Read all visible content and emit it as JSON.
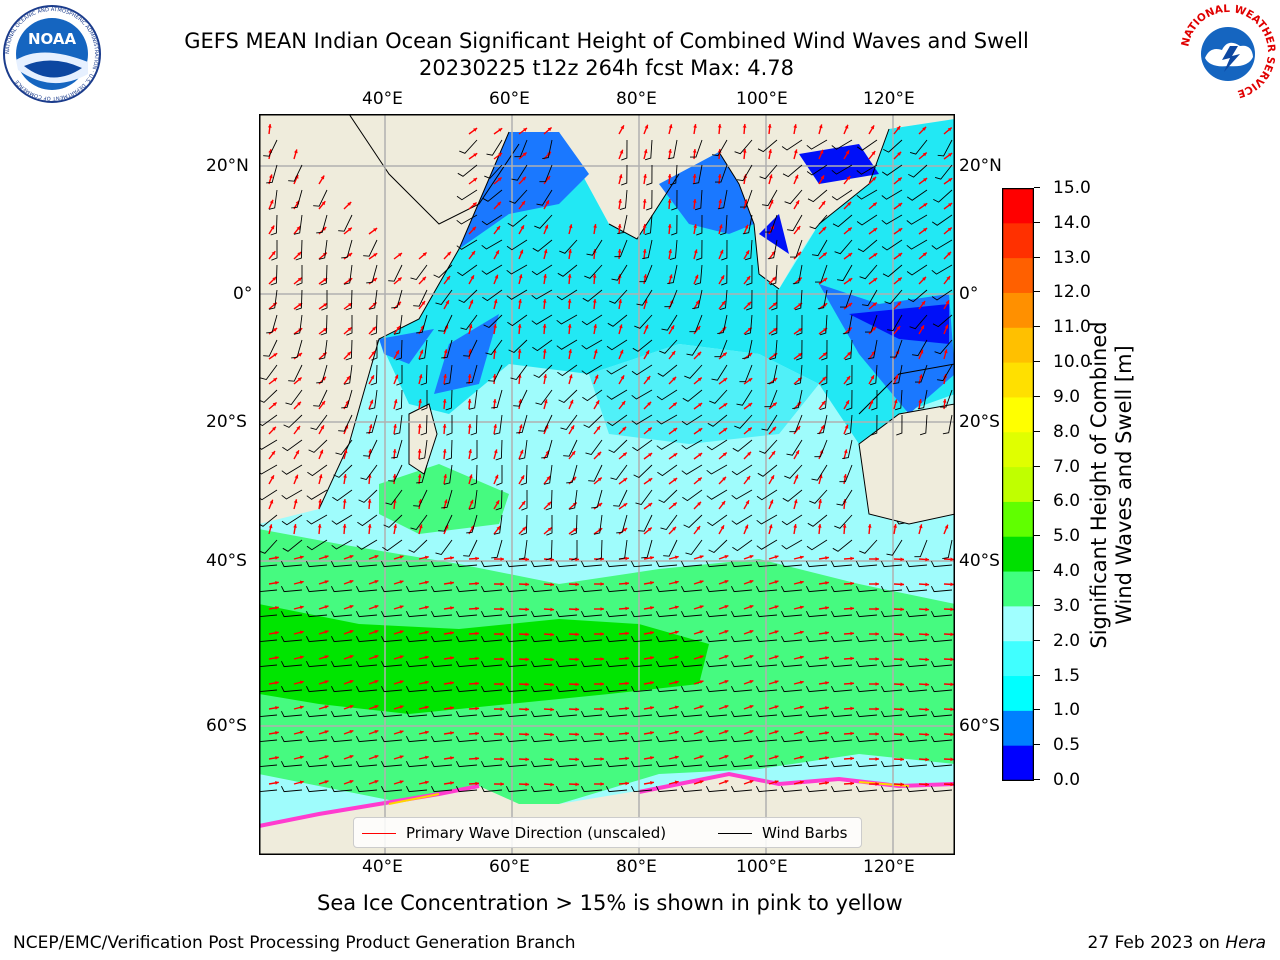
{
  "header": {
    "title_line1": "GEFS MEAN Indian Ocean Significant Height of Combined Wind Waves and Swell",
    "title_line2": "20230225 t12z 264h fcst   Max: 4.78"
  },
  "logos": {
    "left": {
      "text": "NOAA",
      "ring_text": "NATIONAL OCEANIC AND ATMOSPHERIC ADMINISTRATION · U.S. DEPARTMENT OF COMMERCE"
    },
    "right": {
      "ring_text": "NATIONAL WEATHER SERVICE"
    }
  },
  "map": {
    "lon_ticks_top": [
      "40°E",
      "60°E",
      "80°E",
      "100°E",
      "120°E"
    ],
    "lon_ticks_bottom": [
      "40°E",
      "60°E",
      "80°E",
      "100°E",
      "120°E"
    ],
    "lat_ticks_left": [
      "20°N",
      "0°",
      "20°S",
      "40°S",
      "60°S"
    ],
    "lat_ticks_right": [
      "20°N",
      "0°",
      "20°S",
      "40°S",
      "60°S"
    ],
    "colors": {
      "land": "#efecdc",
      "arrow": "#ff0000",
      "barb": "#000000",
      "grid": "#b0b0b0"
    }
  },
  "legend": {
    "wave_label": "Primary Wave Direction (unscaled)",
    "barb_label": "Wind Barbs",
    "wave_color": "#ff0000",
    "barb_color": "#000000"
  },
  "colorbar": {
    "ticks": [
      "15.0",
      "14.0",
      "13.0",
      "12.0",
      "11.0",
      "10.0",
      "9.0",
      "8.0",
      "7.0",
      "6.0",
      "5.0",
      "4.0",
      "3.0",
      "2.0",
      "1.5",
      "1.0",
      "0.5",
      "0.0"
    ],
    "label_line1": "Significant Height of Combined",
    "label_line2": "Wind Waves and Swell [m]",
    "colors_bottom_to_top": [
      "#0000ff",
      "#0080ff",
      "#00ffff",
      "#40ffff",
      "#a0ffff",
      "#40ff80",
      "#00e000",
      "#60ff00",
      "#c0ff00",
      "#e0ff00",
      "#ffff00",
      "#ffe000",
      "#ffc000",
      "#ff9000",
      "#ff6000",
      "#ff3000",
      "#ff0000"
    ]
  },
  "caption": "Sea Ice Concentration > 15% is shown in pink to yellow",
  "footer": {
    "left": "NCEP/EMC/Verification Post Processing Product Generation Branch",
    "right_date": "27 Feb 2023 on ",
    "right_host": "Hera"
  }
}
